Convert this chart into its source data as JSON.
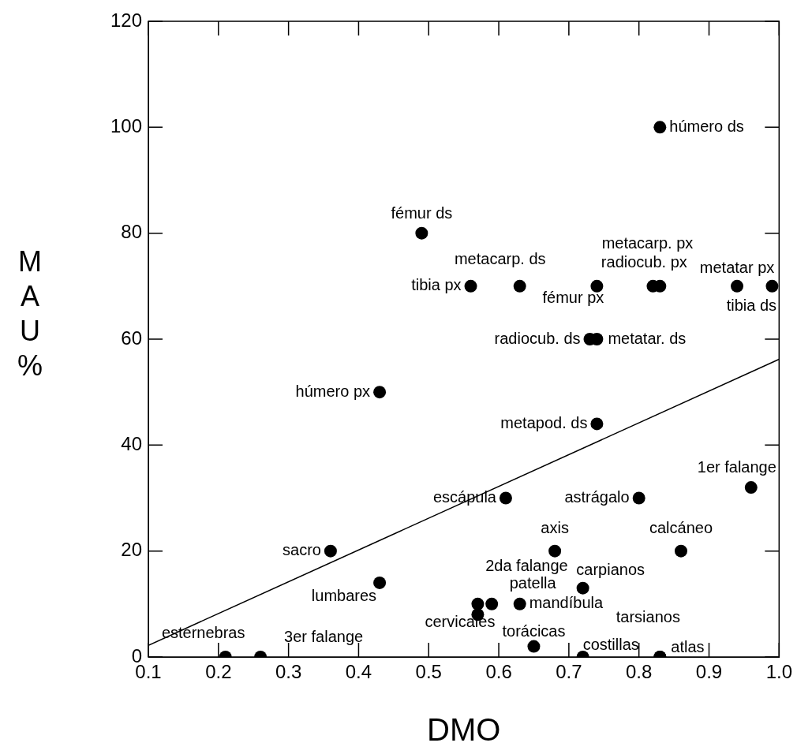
{
  "chart_data": {
    "type": "scatter",
    "xlabel": "DMO",
    "ylabel": "MAU%",
    "xlim": [
      0.1,
      1.0
    ],
    "xticks": [
      {
        "value": 0.1,
        "label": "0.1"
      },
      {
        "value": 0.2,
        "label": "0.2"
      },
      {
        "value": 0.3,
        "label": "0.3"
      },
      {
        "value": 0.4,
        "label": "0.4"
      },
      {
        "value": 0.5,
        "label": "0.5"
      },
      {
        "value": 0.6,
        "label": "0.6"
      },
      {
        "value": 0.7,
        "label": "0.7"
      },
      {
        "value": 0.8,
        "label": "0.8"
      },
      {
        "value": 0.9,
        "label": "0.9"
      },
      {
        "value": 1.0,
        "label": "1.0"
      }
    ],
    "ylim": [
      0,
      120
    ],
    "yticks": [
      0,
      20,
      40,
      60,
      80,
      100,
      120
    ],
    "grid": false,
    "legend": false,
    "marker": "circle",
    "series": [
      {
        "color": "#000000",
        "x": [
          0.21,
          0.26,
          0.36,
          0.43,
          0.43,
          0.49,
          0.56,
          0.57,
          0.57,
          0.59,
          0.61,
          0.63,
          0.63,
          0.65,
          0.68,
          0.72,
          0.72,
          0.73,
          0.74,
          0.74,
          0.74,
          0.8,
          0.82,
          0.83,
          0.83,
          0.83,
          0.83,
          0.86,
          0.96,
          0.94,
          0.99
        ],
        "values": [
          0,
          0,
          20,
          14,
          50,
          80,
          70,
          8,
          10,
          10,
          30,
          70,
          10,
          2,
          20,
          13,
          0,
          60,
          60,
          70,
          44,
          30,
          70,
          70,
          100,
          0,
          0,
          20,
          32,
          70,
          70
        ]
      },
      {
        "type": "line",
        "color": "#000000",
        "line_style": "solid",
        "marker": "none",
        "x": [
          0.1,
          1.0
        ],
        "values": [
          2.2,
          56.2
        ]
      }
    ],
    "annotations": [
      {
        "text": "esternebras",
        "x": 0.21,
        "y": 0
      },
      {
        "text": "3er falange",
        "x": 0.26,
        "y": 0
      },
      {
        "text": "sacro",
        "x": 0.36,
        "y": 20
      },
      {
        "text": "lumbares",
        "x": 0.43,
        "y": 14
      },
      {
        "text": "húmero px",
        "x": 0.43,
        "y": 50
      },
      {
        "text": "fémur ds",
        "x": 0.49,
        "y": 80
      },
      {
        "text": "tibia px",
        "x": 0.56,
        "y": 70
      },
      {
        "text": "cervicales",
        "x": 0.57,
        "y": 8
      },
      {
        "text": "2da falange",
        "x": 0.57,
        "y": 10
      },
      {
        "text": "patella",
        "x": 0.59,
        "y": 10
      },
      {
        "text": "escápula",
        "x": 0.61,
        "y": 30
      },
      {
        "text": "metacarp. ds",
        "x": 0.63,
        "y": 70
      },
      {
        "text": "mandíbula",
        "x": 0.63,
        "y": 10
      },
      {
        "text": "torácicas",
        "x": 0.65,
        "y": 2
      },
      {
        "text": "axis",
        "x": 0.68,
        "y": 20
      },
      {
        "text": "carpianos",
        "x": 0.72,
        "y": 13
      },
      {
        "text": "costillas",
        "x": 0.72,
        "y": 0
      },
      {
        "text": "radiocub. ds",
        "x": 0.73,
        "y": 60
      },
      {
        "text": "metatar. ds",
        "x": 0.74,
        "y": 60
      },
      {
        "text": "fémur px",
        "x": 0.74,
        "y": 70
      },
      {
        "text": "metapod. ds",
        "x": 0.74,
        "y": 44
      },
      {
        "text": "astrágalo",
        "x": 0.8,
        "y": 30
      },
      {
        "text": "metacarp. px",
        "x": 0.82,
        "y": 70
      },
      {
        "text": "radiocub. px",
        "x": 0.83,
        "y": 70
      },
      {
        "text": "húmero ds",
        "x": 0.83,
        "y": 100
      },
      {
        "text": "atlas",
        "x": 0.83,
        "y": 0
      },
      {
        "text": "tarsianos",
        "x": 0.83,
        "y": 0
      },
      {
        "text": "calcáneo",
        "x": 0.86,
        "y": 20
      },
      {
        "text": "1er falange",
        "x": 0.96,
        "y": 32
      },
      {
        "text": "metatar px",
        "x": 0.94,
        "y": 70
      },
      {
        "text": "tibia ds",
        "x": 0.99,
        "y": 70
      }
    ]
  }
}
